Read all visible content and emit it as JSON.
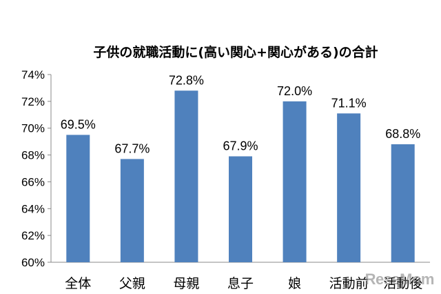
{
  "chart_data": {
    "type": "bar",
    "title": "子供の就職活動に(高い関心+関心がある)の合計",
    "categories": [
      "全体",
      "父親",
      "母親",
      "息子",
      "娘",
      "活動前",
      "活動後"
    ],
    "values": [
      69.5,
      67.7,
      72.8,
      67.9,
      72.0,
      71.1,
      68.8
    ],
    "value_labels": [
      "69.5%",
      "67.7%",
      "72.8%",
      "67.9%",
      "72.0%",
      "71.1%",
      "68.8%"
    ],
    "y_ticks": [
      "60%",
      "62%",
      "64%",
      "66%",
      "68%",
      "70%",
      "72%",
      "74%"
    ],
    "ylim": [
      60,
      74
    ],
    "bar_color": "#4f81bd",
    "grid": false,
    "legend": "none"
  },
  "watermark": "ReseMom"
}
